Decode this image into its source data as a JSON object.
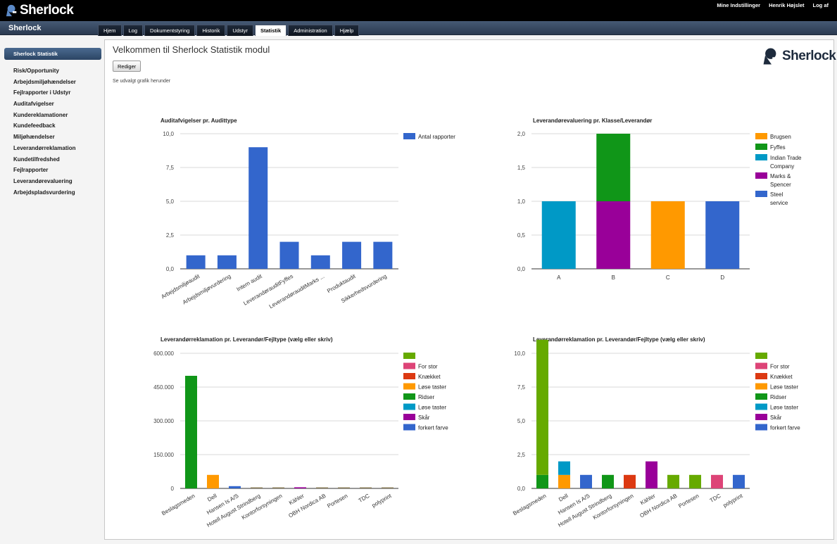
{
  "topbar": {
    "logo_text": "Sherlock",
    "links": [
      "Mine Indstillinger",
      "Henrik Højslet",
      "Log af"
    ]
  },
  "app_title": "Sherlock",
  "tabs": [
    {
      "label": "Hjem"
    },
    {
      "label": "Log"
    },
    {
      "label": "Dokumentstyring"
    },
    {
      "label": "Historik"
    },
    {
      "label": "Udstyr"
    },
    {
      "label": "Statistik",
      "active": true
    },
    {
      "label": "Administration"
    },
    {
      "label": "Hjælp"
    }
  ],
  "sidebar": {
    "header": "Sherlock Statistik",
    "items": [
      "Risk/Opportunity",
      "Arbejdsmiljøhændelser",
      "Fejlrapporter i Udstyr",
      "Auditafvigelser",
      "Kundereklamationer",
      "Kundefeedback",
      "Miljøhændelser",
      "Leverandørreklamation",
      "Kundetilfredshed",
      "Fejlrapporter",
      "Leverandørevaluering",
      "Arbejdspladsvurdering"
    ]
  },
  "main": {
    "title": "Velkommen til Sherlock Statistik modul",
    "edit_button": "Rediger",
    "hint": "Se udvalgt grafik herunder",
    "logo_text": "Sherlock"
  },
  "colors": {
    "blue": "#3366cc",
    "green": "#109618",
    "orange": "#ff9900",
    "teal": "#0099c6",
    "purple": "#990099",
    "pink": "#dd4477",
    "red": "#dc3912",
    "lime": "#66aa00"
  },
  "chart_data": [
    {
      "type": "bar",
      "title": "Auditafvigelser pr. Audittype",
      "categories": [
        "Arbejdsmiljøaudit",
        "Arbejdsmiljøvurdering",
        "Intern audit",
        "LeverandørauditFyffes",
        "LeverandørauditMarks ...",
        "Produktaudit",
        "Sikkerhedsvurdering"
      ],
      "series": [
        {
          "name": "Antal rapporter",
          "color": "#3366cc",
          "values": [
            1,
            1,
            9,
            2,
            1,
            2,
            2
          ]
        }
      ],
      "ylim": [
        0,
        10
      ],
      "yticks": [
        "0,0",
        "2,5",
        "5,0",
        "7,5",
        "10,0"
      ],
      "grid": true,
      "legend": "right",
      "rotated_labels": true
    },
    {
      "type": "bar",
      "stacked": true,
      "title": "Leverandørevaluering pr. Klasse/Leverandør",
      "categories": [
        "A",
        "B",
        "C",
        "D"
      ],
      "series": [
        {
          "name": "Brugsen",
          "color": "#ff9900",
          "values": [
            0,
            0,
            1,
            0
          ]
        },
        {
          "name": "Fyffes",
          "color": "#109618",
          "values": [
            0,
            1,
            0,
            0
          ]
        },
        {
          "name": "Indian Trade Company",
          "color": "#0099c6",
          "values": [
            1,
            0,
            0,
            0
          ]
        },
        {
          "name": "Marks & Spencer",
          "color": "#990099",
          "values": [
            0,
            1,
            0,
            0
          ]
        },
        {
          "name": "Steel service",
          "color": "#3366cc",
          "values": [
            0,
            0,
            0,
            1
          ]
        }
      ],
      "stack_order": [
        "Marks & Spencer",
        "Indian Trade Company",
        "Brugsen",
        "Steel service",
        "Fyffes"
      ],
      "ylim": [
        0,
        2
      ],
      "yticks": [
        "0,0",
        "0,5",
        "1,0",
        "1,5",
        "2,0"
      ],
      "grid": true,
      "legend": "right",
      "rotated_labels": false
    },
    {
      "type": "bar",
      "stacked": true,
      "title": "Leverandørreklamation pr. Leverandør/Fejltype (vælg eller skriv)",
      "categories": [
        "Beslagsmeden",
        "Dell",
        "Hansen Is A/S",
        "Hotell August Strindberg",
        "Kontorforsyningen",
        "Kähler",
        "OBH Nordica AB",
        "Portesen",
        "TDC",
        "polyprint"
      ],
      "series": [
        {
          "name": "",
          "color": "#66aa00",
          "values": [
            0,
            0,
            0,
            0,
            0,
            0,
            0,
            0,
            0,
            0
          ]
        },
        {
          "name": "For stor",
          "color": "#dd4477",
          "values": [
            0,
            0,
            0,
            0,
            0,
            0,
            0,
            0,
            0,
            0
          ]
        },
        {
          "name": "Knækket",
          "color": "#dc3912",
          "values": [
            0,
            0,
            0,
            0,
            0,
            0,
            0,
            0,
            0,
            0
          ]
        },
        {
          "name": "Løse taster",
          "color": "#ff9900",
          "values": [
            0,
            60000,
            0,
            0,
            0,
            0,
            0,
            0,
            0,
            0
          ]
        },
        {
          "name": "Ridser",
          "color": "#109618",
          "values": [
            0,
            0,
            0,
            0,
            0,
            0,
            0,
            0,
            0,
            0
          ]
        },
        {
          "name": "Løse taster",
          "color": "#0099c6",
          "values": [
            0,
            0,
            0,
            0,
            0,
            0,
            0,
            0,
            0,
            0
          ]
        },
        {
          "name": "Skår",
          "color": "#990099",
          "values": [
            0,
            0,
            0,
            0,
            0,
            5000,
            0,
            0,
            0,
            0
          ]
        },
        {
          "name": "forkert farve",
          "color": "#3366cc",
          "values": [
            0,
            0,
            10000,
            0,
            0,
            0,
            0,
            0,
            0,
            0
          ]
        }
      ],
      "bar_overrides": [
        {
          "category": "Beslagsmeden",
          "color": "#109618",
          "value": 500000
        }
      ],
      "ylim": [
        0,
        600000
      ],
      "yticks": [
        "0",
        "150.000",
        "300.000",
        "450.000",
        "600.000"
      ],
      "grid": true,
      "legend": "right",
      "rotated_labels": true
    },
    {
      "type": "bar",
      "stacked": true,
      "title": "Leverandørreklamation pr. Leverandør/Fejltype (vælg eller skriv)",
      "categories": [
        "Beslagsmeden",
        "Dell",
        "Hansen Is A/S",
        "Hotell August Strindberg",
        "Kontorforsyningen",
        "Kähler",
        "OBH Nordica AB",
        "Portesen",
        "TDC",
        "polyprint"
      ],
      "series": [
        {
          "name": "",
          "color": "#66aa00",
          "values": [
            10,
            0,
            0,
            0,
            0,
            0,
            1,
            1,
            0,
            0
          ]
        },
        {
          "name": "For stor",
          "color": "#dd4477",
          "values": [
            0,
            0,
            0,
            0,
            0,
            0,
            0,
            0,
            1,
            0
          ]
        },
        {
          "name": "Knækket",
          "color": "#dc3912",
          "values": [
            0,
            0,
            0,
            0,
            1,
            0,
            0,
            0,
            0,
            0
          ]
        },
        {
          "name": "Løse taster",
          "color": "#ff9900",
          "values": [
            0,
            1,
            0,
            0,
            0,
            0,
            0,
            0,
            0,
            0
          ]
        },
        {
          "name": "Ridser",
          "color": "#109618",
          "values": [
            1,
            0,
            0,
            1,
            0,
            0,
            0,
            0,
            0,
            0
          ]
        },
        {
          "name": "Løse taster",
          "color": "#0099c6",
          "values": [
            0,
            1,
            0,
            0,
            0,
            0,
            0,
            0,
            0,
            0
          ]
        },
        {
          "name": "Skår",
          "color": "#990099",
          "values": [
            0,
            0,
            0,
            0,
            0,
            2,
            0,
            0,
            0,
            0
          ]
        },
        {
          "name": "forkert farve",
          "color": "#3366cc",
          "values": [
            0,
            0,
            1,
            0,
            0,
            0,
            0,
            0,
            0,
            1
          ]
        }
      ],
      "stack_order": [
        "Løse taster",
        "Ridser",
        "For stor",
        "Knækket",
        "",
        "Skår",
        "forkert farve"
      ],
      "ylim": [
        0,
        10
      ],
      "yticks": [
        "0,0",
        "2,5",
        "5,0",
        "7,5",
        "10,0"
      ],
      "grid": true,
      "legend": "right",
      "rotated_labels": true
    }
  ]
}
